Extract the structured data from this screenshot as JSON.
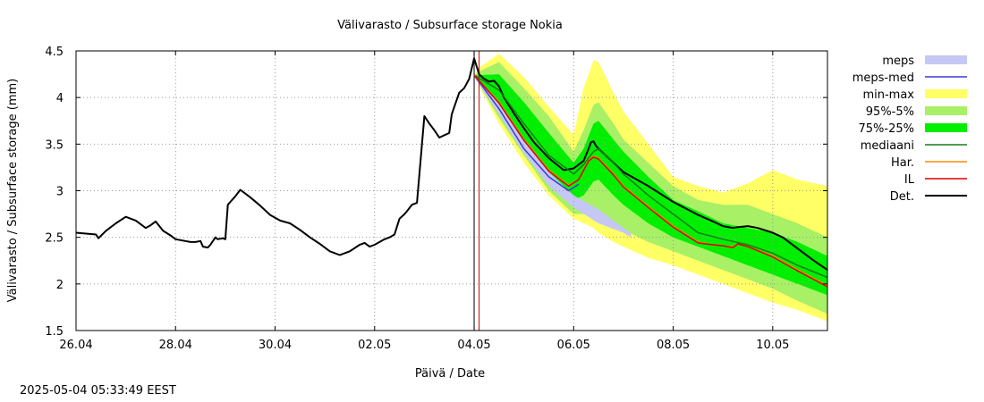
{
  "footer": {
    "timestamp": "2025-05-04 05:33:49 EEST"
  },
  "chart_data": {
    "type": "line",
    "title": "Välivarasto / Subsurface storage  Nokia",
    "xlabel": "Päivä / Date",
    "ylabel": "Välivarasto / Subsurface storage (mm)",
    "x_unit": "days from 26.04",
    "xlim": [
      0,
      15.1
    ],
    "ylim": [
      1.5,
      4.5
    ],
    "x_ticks": [
      {
        "x": 0,
        "label": "26.04"
      },
      {
        "x": 2,
        "label": "28.04"
      },
      {
        "x": 4,
        "label": "30.04"
      },
      {
        "x": 6,
        "label": "02.05"
      },
      {
        "x": 8,
        "label": "04.05"
      },
      {
        "x": 10,
        "label": "06.05"
      },
      {
        "x": 12,
        "label": "08.05"
      },
      {
        "x": 14,
        "label": "10.05"
      }
    ],
    "y_ticks": [
      "1.5",
      "2",
      "2.5",
      "3",
      "3.5",
      "4",
      "4.5"
    ],
    "grid": true,
    "legend_position": "right",
    "vertical_lines": [
      {
        "x": 8.0,
        "color": "#000000"
      },
      {
        "x": 8.1,
        "color": "#cc0000"
      }
    ],
    "legend": [
      {
        "label": "meps",
        "kind": "band",
        "color": "#c5c8f5"
      },
      {
        "label": "meps-med",
        "kind": "line",
        "color": "#3a3ad8"
      },
      {
        "label": "min-max",
        "kind": "band",
        "color": "#ffff66"
      },
      {
        "label": "95%-5%",
        "kind": "band",
        "color": "#a8f066"
      },
      {
        "label": "75%-25%",
        "kind": "band",
        "color": "#00ee00"
      },
      {
        "label": "mediaani",
        "kind": "line",
        "color": "#1a7a1a"
      },
      {
        "label": "Har.",
        "kind": "line",
        "color": "#ff8800"
      },
      {
        "label": "IL",
        "kind": "line",
        "color": "#dd0000"
      },
      {
        "label": "Det.",
        "kind": "line",
        "color": "#000000"
      }
    ],
    "bands": [
      {
        "name": "min-max",
        "color": "#ffff66",
        "x": [
          8.0,
          8.1,
          8.5,
          9.0,
          9.5,
          10.0,
          10.2,
          10.4,
          10.5,
          10.8,
          11.0,
          11.5,
          12.0,
          12.5,
          13.0,
          13.5,
          14.0,
          14.5,
          15.1
        ],
        "high": [
          4.24,
          4.32,
          4.47,
          4.22,
          3.9,
          3.6,
          4.1,
          4.4,
          4.38,
          4.05,
          3.85,
          3.5,
          3.15,
          3.05,
          2.98,
          3.08,
          3.22,
          3.12,
          3.05
        ],
        "low": [
          4.24,
          4.12,
          3.72,
          3.3,
          2.95,
          2.7,
          2.65,
          2.6,
          2.55,
          2.45,
          2.4,
          2.28,
          2.2,
          2.1,
          2.0,
          1.9,
          1.8,
          1.72,
          1.6
        ]
      },
      {
        "name": "95%-5%",
        "color": "#a8f066",
        "x": [
          8.0,
          8.1,
          8.5,
          9.0,
          9.5,
          10.0,
          10.2,
          10.4,
          10.5,
          10.8,
          11.0,
          11.5,
          12.0,
          12.5,
          13.0,
          13.5,
          14.0,
          14.5,
          15.1
        ],
        "high": [
          4.24,
          4.28,
          4.38,
          4.1,
          3.8,
          3.42,
          3.65,
          3.92,
          3.95,
          3.72,
          3.55,
          3.3,
          3.05,
          2.9,
          2.85,
          2.85,
          2.75,
          2.65,
          2.5
        ],
        "low": [
          4.24,
          4.14,
          3.78,
          3.38,
          3.0,
          2.75,
          2.75,
          2.8,
          2.78,
          2.65,
          2.58,
          2.45,
          2.35,
          2.25,
          2.15,
          2.05,
          1.95,
          1.82,
          1.68
        ]
      },
      {
        "name": "75%-25%",
        "color": "#00ee00",
        "x": [
          8.0,
          8.1,
          8.5,
          9.0,
          9.5,
          10.0,
          10.2,
          10.4,
          10.5,
          10.8,
          11.0,
          11.5,
          12.0,
          12.5,
          13.0,
          13.5,
          14.0,
          14.5,
          15.1
        ],
        "high": [
          4.24,
          4.24,
          4.25,
          3.95,
          3.62,
          3.3,
          3.45,
          3.72,
          3.75,
          3.55,
          3.42,
          3.15,
          2.9,
          2.78,
          2.65,
          2.6,
          2.55,
          2.45,
          2.3
        ],
        "low": [
          4.24,
          4.18,
          3.92,
          3.5,
          3.15,
          2.9,
          2.95,
          3.1,
          3.12,
          2.95,
          2.85,
          2.65,
          2.5,
          2.4,
          2.3,
          2.2,
          2.1,
          2.0,
          1.88
        ]
      },
      {
        "name": "meps",
        "color": "#c5c8f5",
        "x": [
          8.0,
          8.5,
          9.0,
          9.5,
          10.0,
          10.5,
          11.0,
          11.15
        ],
        "high": [
          4.24,
          3.95,
          3.55,
          3.2,
          2.95,
          2.8,
          2.6,
          2.55
        ],
        "low": [
          4.22,
          3.82,
          3.4,
          3.05,
          2.82,
          2.65,
          2.55,
          2.5
        ]
      }
    ],
    "series": [
      {
        "name": "Det.",
        "color": "#000000",
        "width": 2,
        "x": [
          0,
          0.4,
          0.45,
          0.6,
          0.8,
          1.0,
          1.2,
          1.4,
          1.5,
          1.6,
          1.75,
          1.9,
          2.0,
          2.1,
          2.3,
          2.4,
          2.5,
          2.55,
          2.65,
          2.7,
          2.8,
          2.85,
          2.95,
          3.0,
          3.05,
          3.1,
          3.2,
          3.3,
          3.5,
          3.7,
          3.9,
          4.1,
          4.3,
          4.5,
          4.7,
          4.9,
          5.1,
          5.3,
          5.5,
          5.7,
          5.8,
          5.9,
          6.0,
          6.1,
          6.2,
          6.3,
          6.4,
          6.5,
          6.6,
          6.65,
          6.75,
          6.85,
          7.0,
          7.1,
          7.2,
          7.3,
          7.5,
          7.55,
          7.7,
          7.8,
          7.9,
          8.0,
          8.1,
          8.2,
          8.3,
          8.4,
          8.5,
          8.6,
          8.8,
          9.0,
          9.2,
          9.5,
          9.8,
          10.0,
          10.2,
          10.3,
          10.35,
          10.4,
          10.45,
          10.5,
          10.8,
          11.0,
          11.5,
          12.0,
          12.5,
          12.8,
          13.0,
          13.2,
          13.3,
          13.5,
          13.7,
          14.0,
          14.2,
          14.5,
          14.8,
          15.1
        ],
        "y": [
          2.55,
          2.53,
          2.49,
          2.57,
          2.65,
          2.72,
          2.68,
          2.6,
          2.63,
          2.67,
          2.57,
          2.52,
          2.48,
          2.47,
          2.45,
          2.45,
          2.46,
          2.4,
          2.39,
          2.42,
          2.5,
          2.48,
          2.49,
          2.48,
          2.85,
          2.88,
          2.94,
          3.01,
          2.93,
          2.84,
          2.74,
          2.68,
          2.65,
          2.58,
          2.5,
          2.43,
          2.35,
          2.31,
          2.35,
          2.42,
          2.44,
          2.4,
          2.42,
          2.45,
          2.48,
          2.5,
          2.53,
          2.7,
          2.75,
          2.78,
          2.85,
          2.87,
          3.8,
          3.72,
          3.65,
          3.57,
          3.62,
          3.82,
          4.05,
          4.1,
          4.2,
          4.42,
          4.25,
          4.2,
          4.17,
          4.18,
          4.12,
          4.0,
          3.83,
          3.67,
          3.52,
          3.35,
          3.22,
          3.24,
          3.32,
          3.45,
          3.52,
          3.53,
          3.48,
          3.45,
          3.3,
          3.2,
          3.05,
          2.88,
          2.74,
          2.67,
          2.62,
          2.6,
          2.61,
          2.62,
          2.6,
          2.55,
          2.5,
          2.38,
          2.26,
          2.15
        ]
      },
      {
        "name": "mediaani",
        "color": "#1a7a1a",
        "width": 1.5,
        "x": [
          8.0,
          8.5,
          9.0,
          9.5,
          10.0,
          10.2,
          10.4,
          10.5,
          10.8,
          11.0,
          11.5,
          12.0,
          12.5,
          13.0,
          13.5,
          14.0,
          14.5,
          15.1
        ],
        "y": [
          4.24,
          4.08,
          3.72,
          3.38,
          3.18,
          3.28,
          3.42,
          3.45,
          3.3,
          3.18,
          2.95,
          2.75,
          2.55,
          2.48,
          2.42,
          2.33,
          2.2,
          2.07
        ]
      },
      {
        "name": "meps-med",
        "color": "#3a3ad8",
        "width": 1.5,
        "x": [
          8.0,
          8.5,
          9.0,
          9.5,
          9.9,
          10.1
        ],
        "y": [
          4.24,
          3.88,
          3.45,
          3.15,
          3.0,
          3.07
        ]
      },
      {
        "name": "Har.",
        "color": "#ff8800",
        "width": 1.5,
        "x": [
          8.0,
          8.5,
          9.0,
          9.5,
          9.9,
          10.1,
          10.3,
          10.4,
          10.5,
          10.8,
          11.0,
          11.5,
          12.0,
          12.5,
          12.8,
          13.0,
          13.2,
          13.3,
          13.5,
          14.0,
          14.5,
          15.1
        ],
        "y": [
          4.24,
          3.95,
          3.55,
          3.22,
          3.06,
          3.12,
          3.33,
          3.37,
          3.35,
          3.18,
          3.05,
          2.83,
          2.62,
          2.45,
          2.42,
          2.41,
          2.4,
          2.43,
          2.4,
          2.3,
          2.15,
          1.98
        ]
      },
      {
        "name": "IL",
        "color": "#dd0000",
        "width": 1.5,
        "x": [
          8.0,
          8.5,
          9.0,
          9.5,
          9.9,
          10.1,
          10.3,
          10.4,
          10.5,
          10.8,
          11.0,
          11.5,
          12.0,
          12.5,
          12.8,
          13.0,
          13.2,
          13.3,
          13.5,
          14.0,
          14.5,
          15.1
        ],
        "y": [
          4.24,
          3.94,
          3.54,
          3.21,
          3.05,
          3.12,
          3.32,
          3.36,
          3.34,
          3.17,
          3.04,
          2.82,
          2.61,
          2.44,
          2.42,
          2.41,
          2.39,
          2.43,
          2.4,
          2.29,
          2.14,
          1.97
        ]
      }
    ]
  }
}
